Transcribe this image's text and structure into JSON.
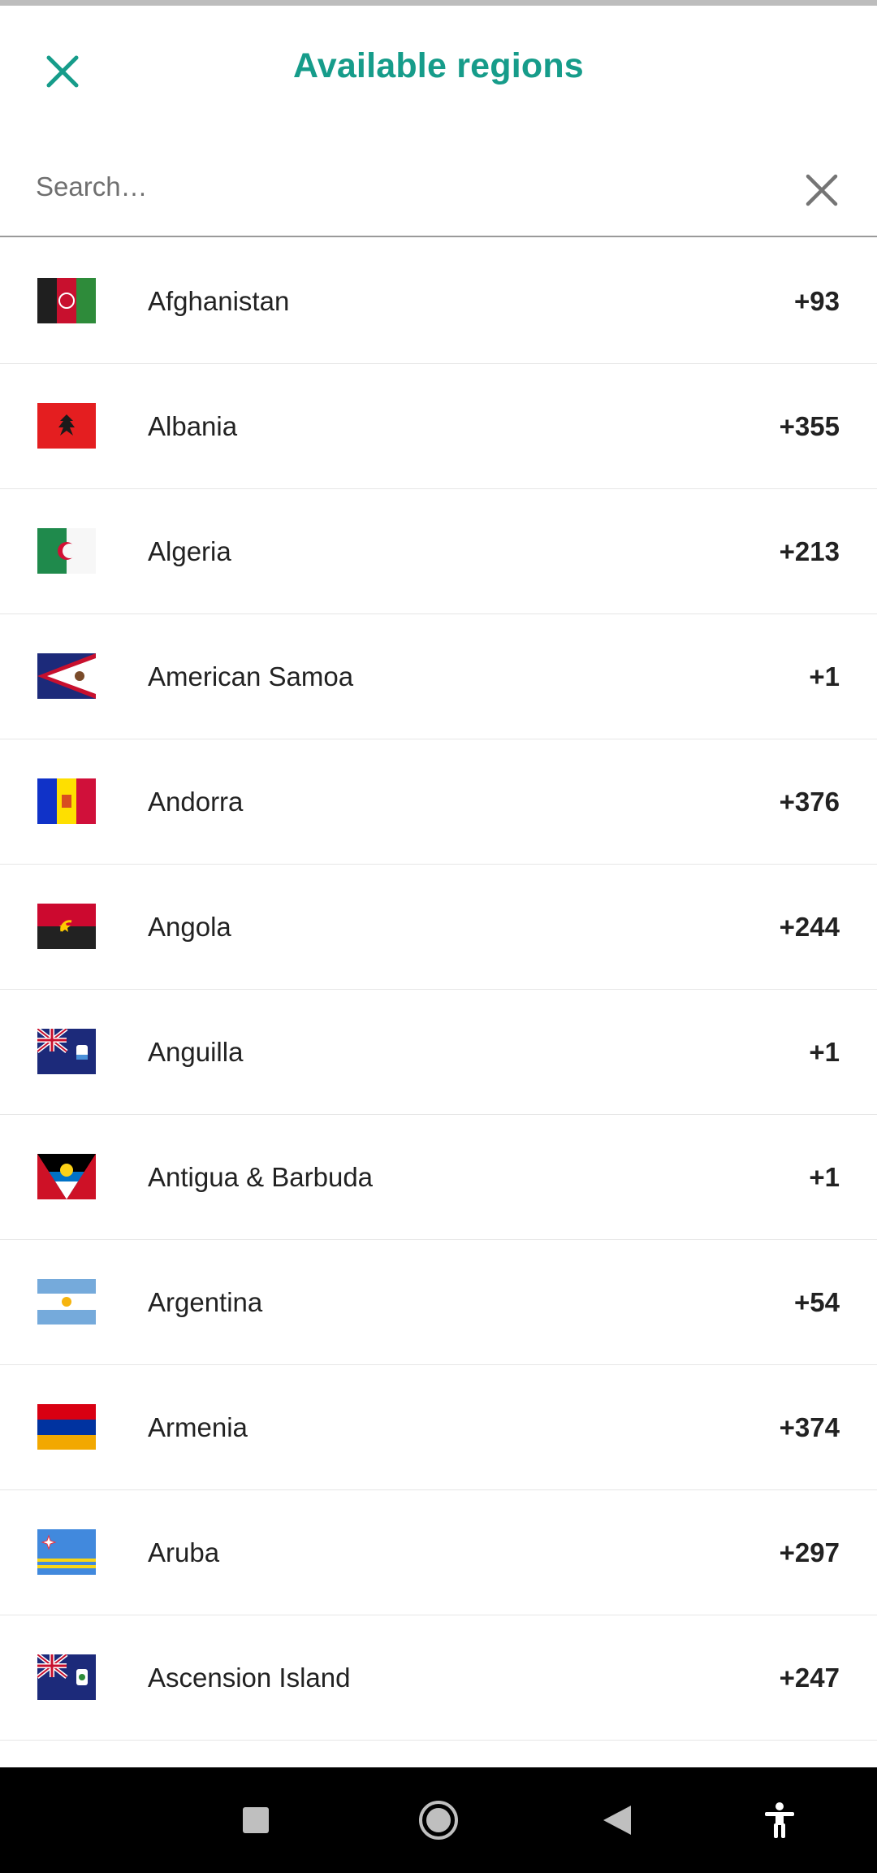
{
  "header": {
    "title": "Available regions",
    "close_icon": "close-icon",
    "accent_color": "#169c8a"
  },
  "search": {
    "placeholder": "Search…",
    "value": "",
    "clear_icon": "clear-icon"
  },
  "regions": [
    {
      "name": "Afghanistan",
      "code": "+93",
      "flag": "flag-af"
    },
    {
      "name": "Albania",
      "code": "+355",
      "flag": "flag-al"
    },
    {
      "name": "Algeria",
      "code": "+213",
      "flag": "flag-dz"
    },
    {
      "name": "American Samoa",
      "code": "+1",
      "flag": "flag-as"
    },
    {
      "name": "Andorra",
      "code": "+376",
      "flag": "flag-ad"
    },
    {
      "name": "Angola",
      "code": "+244",
      "flag": "flag-ao"
    },
    {
      "name": "Anguilla",
      "code": "+1",
      "flag": "flag-ai"
    },
    {
      "name": "Antigua & Barbuda",
      "code": "+1",
      "flag": "flag-ag"
    },
    {
      "name": "Argentina",
      "code": "+54",
      "flag": "flag-ar"
    },
    {
      "name": "Armenia",
      "code": "+374",
      "flag": "flag-am"
    },
    {
      "name": "Aruba",
      "code": "+297",
      "flag": "flag-aw"
    },
    {
      "name": "Ascension Island",
      "code": "+247",
      "flag": "flag-ac"
    }
  ],
  "navbar": {
    "recents_icon": "square-recents-icon",
    "home_icon": "circle-home-icon",
    "back_icon": "triangle-back-icon",
    "accessibility_icon": "accessibility-icon"
  }
}
